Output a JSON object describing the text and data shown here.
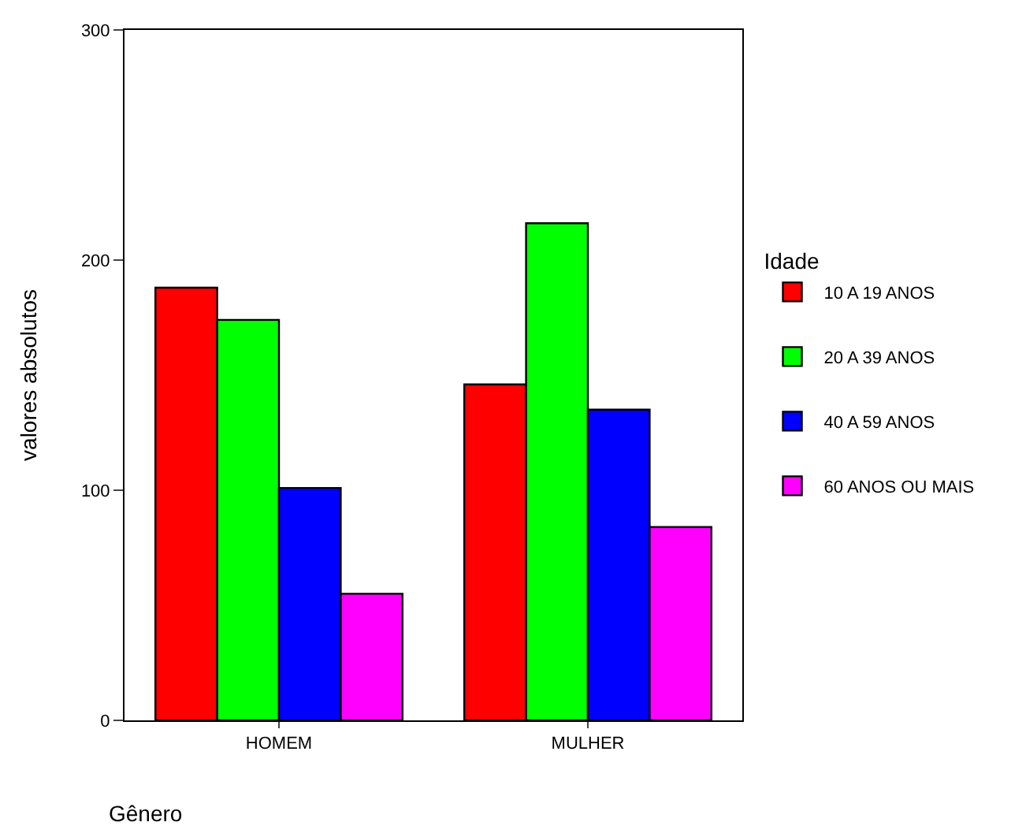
{
  "chart_data": {
    "type": "bar",
    "categories": [
      "HOMEM",
      "MULHER"
    ],
    "xlabel": "Gênero",
    "ylabel": "valores absolutos",
    "legend_title": "Idade",
    "legend": "right",
    "grid": false,
    "ylim": [
      0,
      300
    ],
    "yticks": [
      0,
      100,
      200,
      300
    ],
    "series": [
      {
        "name": "10 A 19 ANOS",
        "color": "#ff0000",
        "values": [
          188,
          146
        ]
      },
      {
        "name": "20 A 39 ANOS",
        "color": "#00ff00",
        "values": [
          174,
          216
        ]
      },
      {
        "name": "40 A 59 ANOS",
        "color": "#0000ff",
        "values": [
          101,
          135
        ]
      },
      {
        "name": "60 ANOS OU MAIS",
        "color": "#ff00ff",
        "values": [
          55,
          84
        ]
      }
    ]
  }
}
